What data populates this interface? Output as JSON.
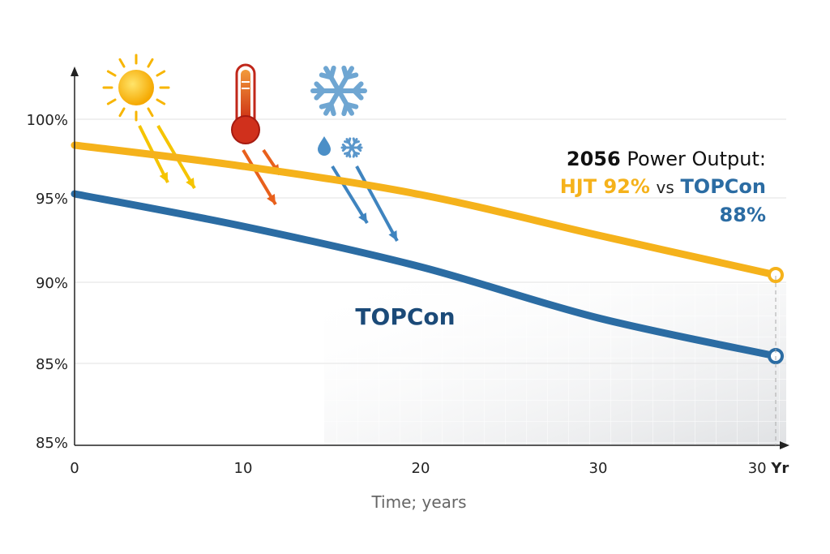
{
  "chart_data": {
    "type": "line",
    "xlabel": "Time; years",
    "ylabel": "",
    "x_ticks": [
      "0",
      "10",
      "20",
      "30",
      "30 Yr"
    ],
    "y_ticks": [
      "85%",
      "85%",
      "90%",
      "95%",
      "100%"
    ],
    "categories": [
      "0",
      "10",
      "20",
      "30",
      "30 Yr"
    ],
    "grid": true,
    "series": [
      {
        "key": "hjt",
        "color": "#F5B21B",
        "values": [
          98.4,
          97.1,
          95.35,
          92.85,
          90.4
        ]
      },
      {
        "key": "topcon",
        "name": "TOPCon",
        "color": "#2B6CA3",
        "values": [
          95.4,
          93.4,
          90.9,
          87.75,
          85.4
        ]
      }
    ],
    "annotation": {
      "year": "2056",
      "line1_rest": "Power Output:",
      "hjt_text": "HJT 92%",
      "vs": "vs",
      "topcon_text": "TOPCon",
      "topcon_value": "88%"
    },
    "series_label": "TOPCon",
    "icons": [
      "sun-icon",
      "thermometer-icon",
      "snowflake-icon",
      "water-drop-icon",
      "small-snowflake-icon"
    ]
  }
}
